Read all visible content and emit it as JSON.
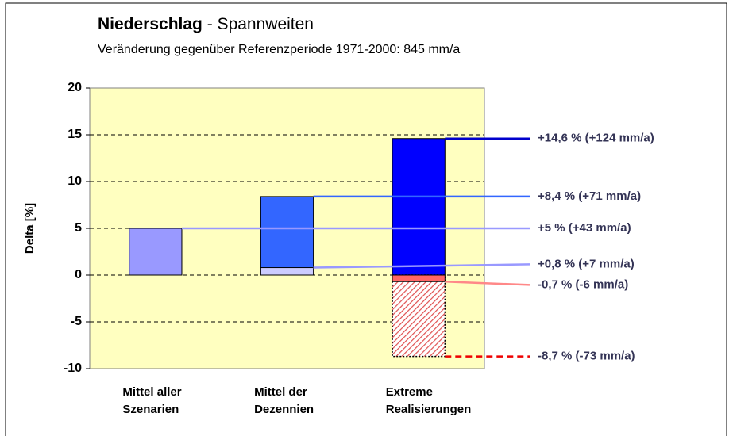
{
  "chart_data": {
    "type": "range-bar",
    "title": "Niederschlag",
    "title_suffix": "- Spannweiten",
    "subtitle": "Veränderung gegenüber Referenzperiode 1971-2000: 845 mm/a",
    "y_label": "Delta [%]",
    "ylim": [
      -10,
      20
    ],
    "yticks": [
      -10,
      -5,
      0,
      5,
      10,
      15,
      20
    ],
    "grid": true,
    "plot_color": "#ffffc0",
    "groups": [
      {
        "category": "Mittel aller Szenarien",
        "bars": [
          {
            "value": 5,
            "value_label": "+5 % (+43 mm/a)",
            "color": "#9999ff",
            "line_color": "#9999ff"
          }
        ]
      },
      {
        "category": "Mittel der Dezennien",
        "bars": [
          {
            "value": 8.4,
            "value_label": "+8,4 % (+71 mm/a)",
            "color": "#3366ff",
            "line_color": "#3366ff"
          },
          {
            "value": 0.8,
            "value_label": "+0,8 % (+7 mm/a)",
            "color": "#ccccff",
            "line_color": "#9999ff"
          }
        ]
      },
      {
        "category": "Extreme Realisierungen",
        "bars": [
          {
            "value": 14.6,
            "value_label": "+14,6 % (+124 mm/a)",
            "color": "#0000ff",
            "line_color": "#0000cc"
          },
          {
            "value": -8.7,
            "value_label": "-8,7 % (-73 mm/a)",
            "color": "#ff6666",
            "line_color": "#ee0000",
            "hatched": true
          },
          {
            "value": -0.7,
            "value_label": "-0,7 % (-6 mm/a)",
            "color": "#ff6666",
            "line_color": "#ff8888"
          }
        ]
      }
    ]
  }
}
